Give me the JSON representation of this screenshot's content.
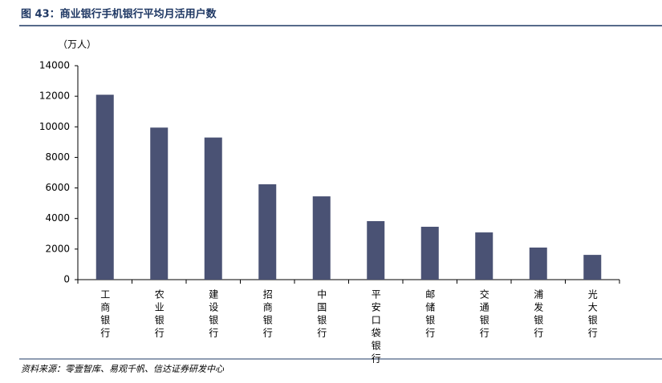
{
  "chart_data": {
    "type": "bar",
    "title": "图 43：商业银行手机银行平均月活用户数",
    "y_unit": "（万人）",
    "source": "资料来源：零壹智库、易观千帆、信达证券研发中心",
    "categories": [
      "工商银行",
      "农业银行",
      "建设银行",
      "招商银行",
      "中国银行",
      "平安口袋银行",
      "邮储银行",
      "交通银行",
      "浦发银行",
      "光大银行"
    ],
    "values": [
      12100,
      9950,
      9300,
      6240,
      5450,
      3830,
      3460,
      3090,
      2100,
      1620
    ],
    "color": "#4a5274",
    "ylim": [
      0,
      14000
    ],
    "yticks": [
      0,
      2000,
      4000,
      6000,
      8000,
      10000,
      12000,
      14000
    ],
    "grid": false
  }
}
